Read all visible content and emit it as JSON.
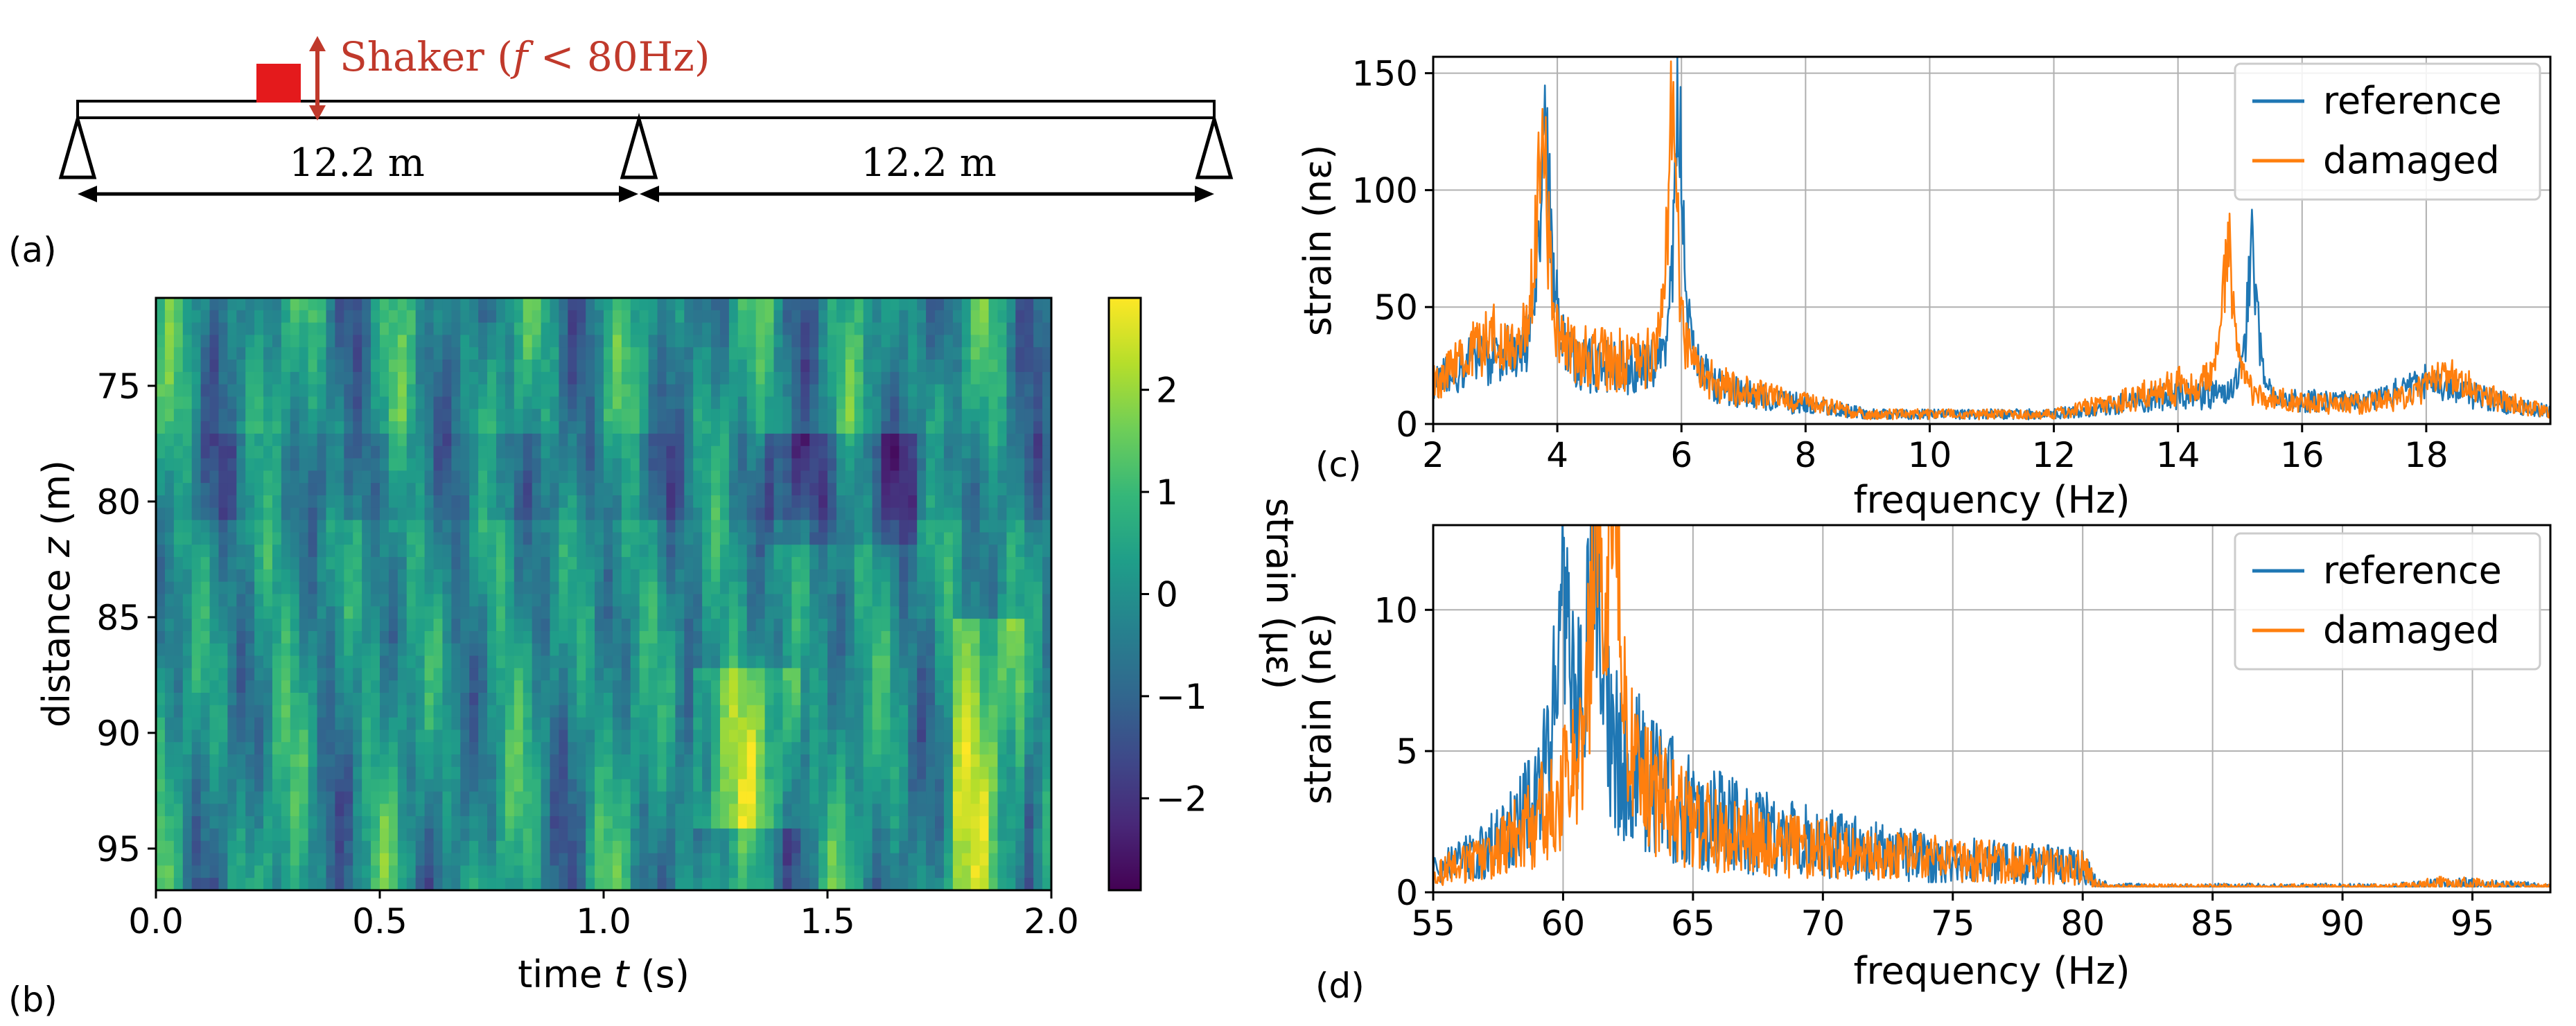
{
  "panel_labels": {
    "a": "(a)",
    "b": "(b)",
    "c": "(c)",
    "d": "(d)"
  },
  "schematic": {
    "shaker_label_prefix": "Shaker (",
    "shaker_label_f": "f",
    "shaker_label_suffix": " < 80Hz)",
    "span1_label": "12.2 m",
    "span2_label": "12.2 m",
    "colors": {
      "shaker": "#e41a1c",
      "beam": "#000000"
    }
  },
  "chart_data": [
    {
      "id": "b",
      "type": "heatmap",
      "xlabel_prefix": "time ",
      "xlabel_var": "t",
      "xlabel_suffix": " (s)",
      "ylabel_prefix": "distance ",
      "ylabel_var": "z",
      "ylabel_suffix": " (m)",
      "xlim": [
        0.0,
        2.0
      ],
      "ylim": [
        71.2,
        96.8
      ],
      "y_inverted": true,
      "xticks": [
        0.0,
        0.5,
        1.0,
        1.5,
        2.0
      ],
      "xtick_labels": [
        "0.0",
        "0.5",
        "1.0",
        "1.5",
        "2.0"
      ],
      "yticks": [
        75,
        80,
        85,
        90,
        95
      ],
      "ytick_labels": [
        "75",
        "80",
        "85",
        "90",
        "95"
      ],
      "colorbar": {
        "label": "strain (µε)",
        "range": [
          -2.9,
          2.9
        ],
        "ticks": [
          2,
          1,
          0,
          -1,
          -2
        ],
        "tick_labels": [
          "2",
          "1",
          "0",
          "−1",
          "−2"
        ],
        "colormap": "viridis"
      },
      "colormap_stops": [
        "#440154",
        "#482878",
        "#3e4989",
        "#31688e",
        "#26828e",
        "#1f9e89",
        "#35b779",
        "#6ece58",
        "#b5de2b",
        "#fde725"
      ]
    },
    {
      "id": "c",
      "type": "line",
      "xlabel": "frequency (Hz)",
      "ylabel": "strain (nε)",
      "xlim": [
        2,
        20
      ],
      "ylim": [
        0,
        157
      ],
      "xticks": [
        2,
        4,
        6,
        8,
        10,
        12,
        14,
        16,
        18
      ],
      "xtick_labels": [
        "2",
        "4",
        "6",
        "8",
        "10",
        "12",
        "14",
        "16",
        "18"
      ],
      "yticks": [
        0,
        50,
        100,
        150
      ],
      "ytick_labels": [
        "0",
        "50",
        "100",
        "150"
      ],
      "grid": true,
      "legend": "top-right",
      "series": [
        {
          "name": "reference",
          "color": "#1f77b4",
          "peaks": [
            [
              3.8,
              136,
              0.11
            ],
            [
              5.95,
              157,
              0.09
            ],
            [
              15.2,
              88,
              0.09
            ],
            [
              17.9,
              10,
              0.4
            ],
            [
              2.8,
              12,
              0.5
            ]
          ],
          "baseline": [
            [
              2,
              15
            ],
            [
              3,
              20
            ],
            [
              5,
              22
            ],
            [
              7,
              12
            ],
            [
              9,
              4
            ],
            [
              12,
              4
            ],
            [
              14,
              12
            ],
            [
              15.8,
              9
            ],
            [
              17,
              8
            ],
            [
              18.5,
              12
            ],
            [
              20,
              5
            ]
          ],
          "noise": 0.55
        },
        {
          "name": "damaged",
          "color": "#ff7f0e",
          "peaks": [
            [
              3.75,
              136,
              0.11
            ],
            [
              5.85,
              150,
              0.09
            ],
            [
              14.8,
              85,
              0.1
            ],
            [
              18.3,
              12,
              0.3
            ],
            [
              2.8,
              15,
              0.4
            ]
          ],
          "baseline": [
            [
              2,
              15
            ],
            [
              3,
              25
            ],
            [
              5,
              25
            ],
            [
              7,
              13
            ],
            [
              9,
              4
            ],
            [
              12,
              4
            ],
            [
              14,
              15
            ],
            [
              15.8,
              9
            ],
            [
              17,
              8
            ],
            [
              18.5,
              13
            ],
            [
              20,
              5
            ]
          ],
          "noise": 0.55
        }
      ]
    },
    {
      "id": "d",
      "type": "line",
      "xlabel": "frequency (Hz)",
      "ylabel": "strain (nε)",
      "xlim": [
        55,
        98
      ],
      "ylim": [
        0,
        13
      ],
      "xticks": [
        55,
        60,
        65,
        70,
        75,
        80,
        85,
        90,
        95
      ],
      "xtick_labels": [
        "55",
        "60",
        "65",
        "70",
        "75",
        "80",
        "85",
        "90",
        "95"
      ],
      "yticks": [
        0,
        5,
        10
      ],
      "ytick_labels": [
        "0",
        "5",
        "10"
      ],
      "grid": true,
      "legend": "top-right",
      "series": [
        {
          "name": "reference",
          "color": "#1f77b4",
          "peaks": [
            [
              61.2,
              10.5,
              0.25
            ],
            [
              60.0,
              8,
              0.3
            ]
          ],
          "envelope": [
            [
              55,
              0.8
            ],
            [
              57,
              1.5
            ],
            [
              59,
              3.2
            ],
            [
              60.5,
              5
            ],
            [
              62,
              5
            ],
            [
              63.5,
              4
            ],
            [
              65,
              3
            ],
            [
              68,
              2.2
            ],
            [
              72,
              1.6
            ],
            [
              76,
              1.2
            ],
            [
              80,
              1.0
            ],
            [
              80.5,
              0.4
            ],
            [
              81,
              0.2
            ],
            [
              92,
              0.2
            ],
            [
              94,
              0.35
            ],
            [
              98,
              0.2
            ]
          ],
          "noise": 0.75
        },
        {
          "name": "damaged",
          "color": "#ff7f0e",
          "peaks": [
            [
              62.0,
              12.1,
              0.2
            ],
            [
              61.3,
              9.2,
              0.3
            ]
          ],
          "envelope": [
            [
              55,
              0.8
            ],
            [
              57,
              1.3
            ],
            [
              59,
              2.8
            ],
            [
              60.5,
              4.5
            ],
            [
              62,
              5
            ],
            [
              63.5,
              3.8
            ],
            [
              65,
              2.8
            ],
            [
              68,
              2.0
            ],
            [
              72,
              1.5
            ],
            [
              76,
              1.3
            ],
            [
              80,
              1.0
            ],
            [
              80.5,
              0.4
            ],
            [
              81,
              0.2
            ],
            [
              92,
              0.2
            ],
            [
              94,
              0.4
            ],
            [
              98,
              0.2
            ]
          ],
          "noise": 0.7
        }
      ]
    }
  ]
}
